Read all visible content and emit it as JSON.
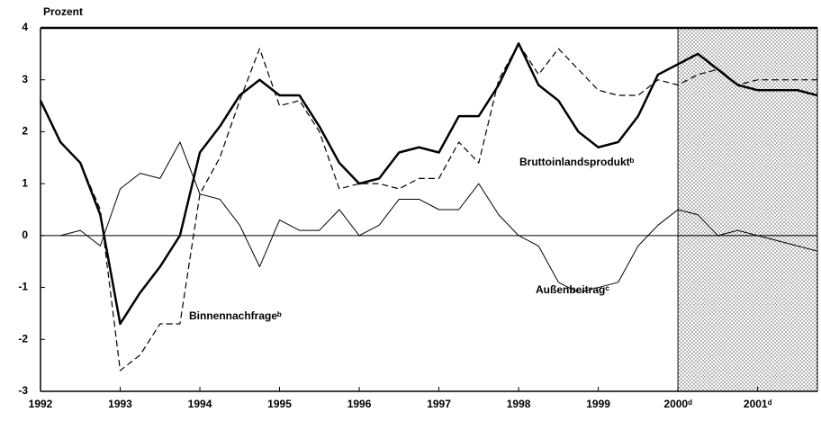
{
  "chart_data": {
    "type": "line",
    "ylabel": "Prozent",
    "x": [
      1992,
      1992.25,
      1992.5,
      1992.75,
      1993,
      1993.25,
      1993.5,
      1993.75,
      1994,
      1994.25,
      1994.5,
      1994.75,
      1995,
      1995.25,
      1995.5,
      1995.75,
      1996,
      1996.25,
      1996.5,
      1996.75,
      1997,
      1997.25,
      1997.5,
      1997.75,
      1998,
      1998.25,
      1998.5,
      1998.75,
      1999,
      1999.25,
      1999.5,
      1999.75,
      2000,
      2000.25,
      2000.5,
      2000.75,
      2001,
      2001.25,
      2001.5,
      2001.75
    ],
    "series": [
      {
        "name": "Bruttoinlandsproduktᵇ",
        "color": "#000000",
        "style": "thick",
        "values": [
          2.6,
          1.8,
          1.4,
          0.4,
          -1.7,
          -1.1,
          -0.6,
          0.0,
          1.6,
          2.1,
          2.7,
          3.0,
          2.7,
          2.7,
          2.1,
          1.4,
          1.0,
          1.1,
          1.6,
          1.7,
          1.6,
          2.3,
          2.3,
          2.9,
          3.7,
          2.9,
          2.6,
          2.0,
          1.7,
          1.8,
          2.3,
          3.1,
          3.3,
          3.5,
          3.2,
          2.9,
          2.8,
          2.8,
          2.8,
          2.7
        ]
      },
      {
        "name": "Binnennachfrageᵇ",
        "color": "#000000",
        "style": "dashed",
        "values": [
          2.6,
          1.8,
          1.4,
          0.5,
          -2.6,
          -2.3,
          -1.7,
          -1.7,
          0.8,
          1.5,
          2.6,
          3.6,
          2.5,
          2.6,
          2.0,
          0.9,
          1.0,
          1.0,
          0.9,
          1.1,
          1.1,
          1.8,
          1.4,
          3.0,
          3.7,
          3.1,
          3.6,
          3.2,
          2.8,
          2.7,
          2.7,
          3.0,
          2.9,
          3.1,
          3.2,
          2.9,
          3.0,
          3.0,
          3.0,
          3.0
        ]
      },
      {
        "name": "Außenbeitragᶜ",
        "color": "#000000",
        "style": "thin",
        "values": [
          null,
          0.0,
          0.1,
          -0.2,
          0.9,
          1.2,
          1.1,
          1.8,
          0.8,
          0.7,
          0.2,
          -0.6,
          0.3,
          0.1,
          0.1,
          0.5,
          0.0,
          0.2,
          0.7,
          0.7,
          0.5,
          0.5,
          1.0,
          0.4,
          0.0,
          -0.2,
          -0.9,
          -1.1,
          -1.0,
          -0.9,
          -0.2,
          0.2,
          0.5,
          0.4,
          0.0,
          0.1,
          0.0,
          -0.1,
          -0.2,
          -0.3
        ]
      }
    ],
    "xlim": [
      1992,
      2001.75
    ],
    "xticks": [
      1992,
      1993,
      1994,
      1995,
      1996,
      1997,
      1998,
      1999,
      {
        "value": 2000,
        "label": "2000ᵈ"
      },
      {
        "value": 2001,
        "label": "2001ᵈ"
      }
    ],
    "ylim": [
      -3,
      4
    ],
    "yticks": [
      -3,
      -2,
      -1,
      0,
      1,
      2,
      3,
      4
    ],
    "shade_from": 2000
  }
}
